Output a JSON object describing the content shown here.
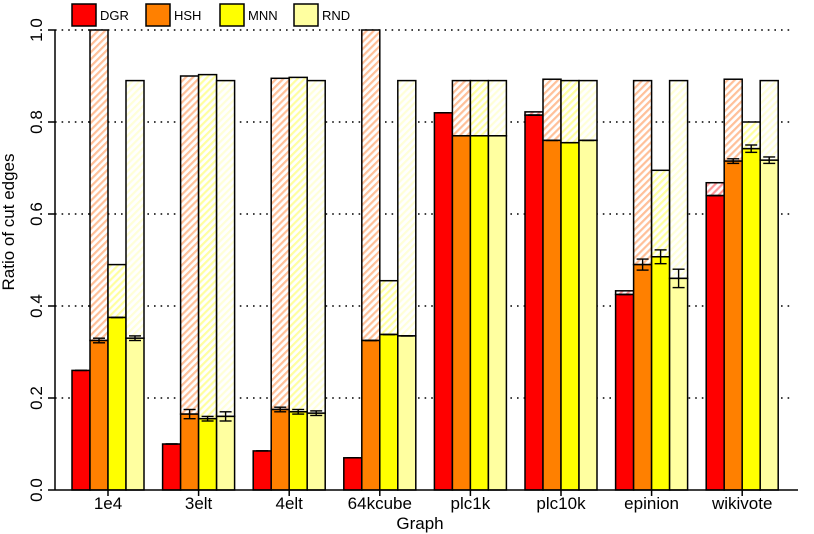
{
  "chart_data": {
    "type": "bar",
    "title": "",
    "xlabel": "Graph",
    "ylabel": "Ratio of cut edges",
    "ylim": [
      0,
      1.0
    ],
    "yticks": [
      "0.0",
      "0.2",
      "0.4",
      "0.6",
      "0.8",
      "1.0"
    ],
    "grid": "horizontal dotted",
    "legend_position": "top",
    "categories": [
      "1e4",
      "3elt",
      "4elt",
      "64kcube",
      "plc1k",
      "plc10k",
      "epinion",
      "wikivote"
    ],
    "series": [
      {
        "name": "DGR",
        "color": "#ff0000",
        "hatch_color": "#ff9999",
        "values": [
          0.26,
          0.1,
          0.085,
          0.07,
          0.82,
          0.815,
          0.425,
          0.64
        ],
        "upper": [
          0.26,
          0.1,
          0.085,
          0.07,
          0.82,
          0.822,
          0.433,
          0.668
        ],
        "errors": [
          0,
          0,
          0,
          0,
          0,
          0,
          0,
          0
        ]
      },
      {
        "name": "HSH",
        "color": "#ff8000",
        "hatch_color": "#ffc099",
        "values": [
          0.325,
          0.165,
          0.175,
          0.325,
          0.77,
          0.76,
          0.49,
          0.715
        ],
        "upper": [
          1.0,
          0.9,
          0.895,
          1.0,
          0.89,
          0.893,
          0.89,
          0.893
        ],
        "errors": [
          0.005,
          0.01,
          0.005,
          0,
          0,
          0,
          0.012,
          0.005
        ]
      },
      {
        "name": "MNN",
        "color": "#ffff00",
        "hatch_color": "#ffffa0",
        "values": [
          0.375,
          0.155,
          0.17,
          0.338,
          0.77,
          0.755,
          0.507,
          0.742
        ],
        "upper": [
          0.49,
          0.903,
          0.897,
          0.455,
          0.89,
          0.89,
          0.695,
          0.8
        ],
        "errors": [
          0,
          0.005,
          0.005,
          0,
          0,
          0,
          0.015,
          0.008
        ]
      },
      {
        "name": "RND",
        "color": "#ffffa0",
        "hatch_color": "#ffffd8",
        "values": [
          0.33,
          0.16,
          0.167,
          0.335,
          0.77,
          0.76,
          0.46,
          0.717
        ],
        "upper": [
          0.89,
          0.89,
          0.89,
          0.89,
          0.89,
          0.89,
          0.89,
          0.89
        ],
        "errors": [
          0.005,
          0.01,
          0.005,
          0,
          0,
          0,
          0.02,
          0.007
        ]
      }
    ]
  }
}
